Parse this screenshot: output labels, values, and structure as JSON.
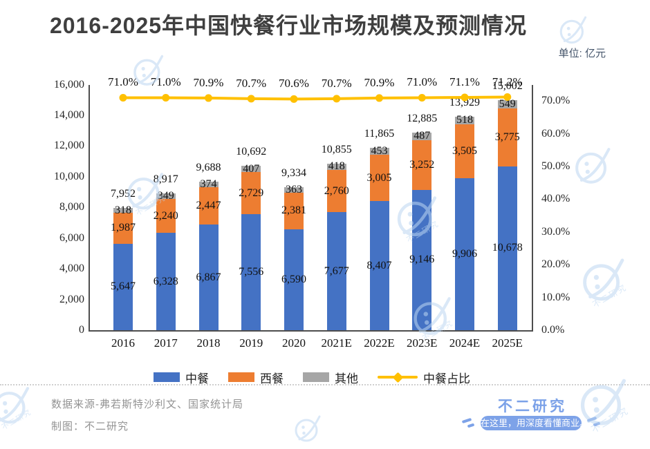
{
  "title": {
    "text": "2016-2025年中国快餐行业市场规模及预测情况",
    "color": "#3f3f3f"
  },
  "unit_label": {
    "text": "单位: 亿元",
    "color": "#44546a"
  },
  "chart_data": {
    "type": "bar",
    "subtype": "stacked-bars-with-percentage-line",
    "title": "2016-2025年中国快餐行业市场规模及预测情况",
    "unit": "亿元",
    "categories": [
      "2016",
      "2017",
      "2018",
      "2019",
      "2020",
      "2021E",
      "2022E",
      "2023E",
      "2024E",
      "2025E"
    ],
    "series": [
      {
        "name": "中餐",
        "type": "bar",
        "color": "#4472C4",
        "values": [
          5647,
          6328,
          6867,
          7556,
          6590,
          7677,
          8407,
          9146,
          9906,
          10678
        ]
      },
      {
        "name": "西餐",
        "type": "bar",
        "color": "#ED7D31",
        "values": [
          1987,
          2240,
          2447,
          2729,
          2381,
          2760,
          3005,
          3252,
          3505,
          3775
        ]
      },
      {
        "name": "其他",
        "type": "bar",
        "color": "#A6A6A6",
        "values": [
          318,
          349,
          374,
          407,
          363,
          418,
          453,
          487,
          518,
          549
        ]
      },
      {
        "name": "中餐占比",
        "type": "line",
        "axis": "right",
        "color": "#FFC000",
        "values": [
          71.0,
          71.0,
          70.9,
          70.7,
          70.6,
          70.7,
          70.9,
          71.0,
          71.1,
          71.2
        ]
      }
    ],
    "totals": [
      7952,
      8917,
      9688,
      10692,
      9334,
      10855,
      11865,
      12885,
      13929,
      15002
    ],
    "line_point_labels": [
      "71.0%",
      "71.0%",
      "70.9%",
      "70.7%",
      "70.6%",
      "70.7%",
      "70.9%",
      "71.0%",
      "71.1%",
      "71.2%"
    ],
    "left_axis": {
      "min": 0,
      "max": 16000,
      "tick_step": 2000,
      "tick_labels": [
        "0",
        "2,000",
        "4,000",
        "6,000",
        "8,000",
        "10,000",
        "12,000",
        "14,000",
        "16,000"
      ]
    },
    "right_axis": {
      "min": 0,
      "max": 75,
      "tick_step": 10,
      "tick_labels": [
        "0.0%",
        "10.0%",
        "20.0%",
        "30.0%",
        "40.0%",
        "50.0%",
        "60.0%",
        "70.0%"
      ]
    },
    "gridlines": false,
    "legend_position": "bottom"
  },
  "legend": {
    "items": [
      {
        "label": "中餐",
        "color": "#4472C4",
        "marker": "square"
      },
      {
        "label": "西餐",
        "color": "#ED7D31",
        "marker": "square"
      },
      {
        "label": "其他",
        "color": "#A6A6A6",
        "marker": "square"
      },
      {
        "label": "中餐占比",
        "color": "#FFC000",
        "marker": "line-diamond"
      }
    ]
  },
  "footer": {
    "source_line": "数据来源-弗若斯特沙利文、国家统计局",
    "credit_line": "制图：不二研究",
    "text_color": "#939393"
  },
  "brand": {
    "name": "不二研究",
    "tagline": "在这里，用深度看懂商业。",
    "color": "#7ba1e8",
    "badge_bg": "#7da2e8",
    "badge_text_color": "#ffffff"
  },
  "watermark": {
    "text": "不二研究",
    "color": "#bdd7f2"
  }
}
